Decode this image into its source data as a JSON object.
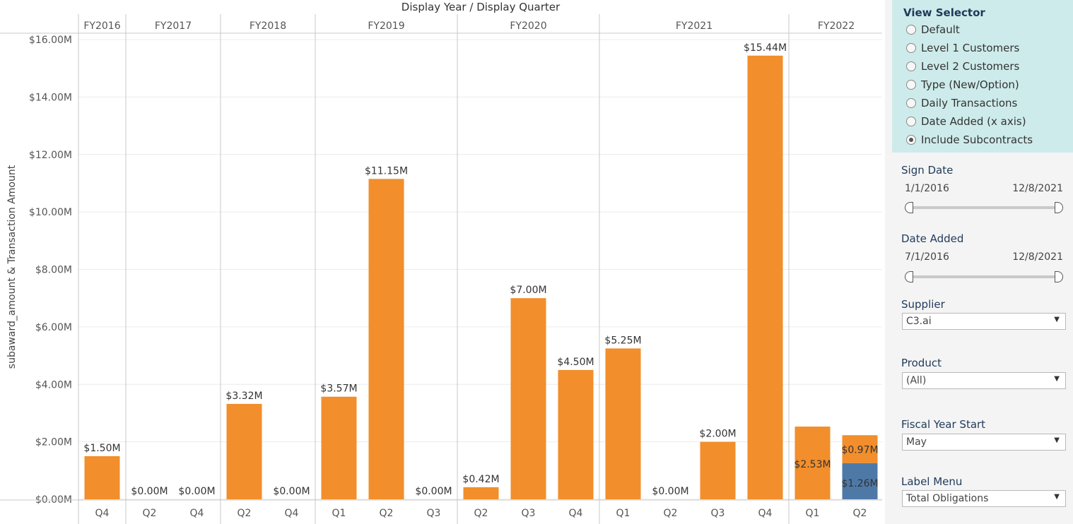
{
  "chart_data": {
    "type": "bar",
    "title": "Display Year / Display Quarter",
    "ylabel": "subaward_amount & Transaction Amount",
    "ylim": [
      0,
      16
    ],
    "y_ticks": [
      "$0.00M",
      "$2.00M",
      "$4.00M",
      "$6.00M",
      "$8.00M",
      "$10.00M",
      "$12.00M",
      "$14.00M",
      "$16.00M"
    ],
    "fiscal_years": [
      {
        "label": "FY2016",
        "quarters": [
          "Q4"
        ]
      },
      {
        "label": "FY2017",
        "quarters": [
          "Q2",
          "Q4"
        ]
      },
      {
        "label": "FY2018",
        "quarters": [
          "Q2",
          "Q4"
        ]
      },
      {
        "label": "FY2019",
        "quarters": [
          "Q1",
          "Q2",
          "Q3"
        ]
      },
      {
        "label": "FY2020",
        "quarters": [
          "Q2",
          "Q3",
          "Q4"
        ]
      },
      {
        "label": "FY2021",
        "quarters": [
          "Q1",
          "Q2",
          "Q3",
          "Q4"
        ]
      },
      {
        "label": "FY2022",
        "quarters": [
          "Q1",
          "Q2"
        ]
      }
    ],
    "bars": [
      {
        "year": "FY2016",
        "quarter": "Q4",
        "orange": 1.5,
        "blue": 0,
        "label": "$1.50M"
      },
      {
        "year": "FY2017",
        "quarter": "Q2",
        "orange": 0,
        "blue": 0,
        "label": "$0.00M"
      },
      {
        "year": "FY2017",
        "quarter": "Q4",
        "orange": 0,
        "blue": 0,
        "label": "$0.00M"
      },
      {
        "year": "FY2018",
        "quarter": "Q2",
        "orange": 3.32,
        "blue": 0,
        "label": "$3.32M"
      },
      {
        "year": "FY2018",
        "quarter": "Q4",
        "orange": 0,
        "blue": 0,
        "label": "$0.00M"
      },
      {
        "year": "FY2019",
        "quarter": "Q1",
        "orange": 3.57,
        "blue": 0,
        "label": "$3.57M"
      },
      {
        "year": "FY2019",
        "quarter": "Q2",
        "orange": 11.15,
        "blue": 0,
        "label": "$11.15M"
      },
      {
        "year": "FY2019",
        "quarter": "Q3",
        "orange": 0,
        "blue": 0,
        "label": "$0.00M"
      },
      {
        "year": "FY2020",
        "quarter": "Q2",
        "orange": 0.42,
        "blue": 0,
        "label": "$0.42M"
      },
      {
        "year": "FY2020",
        "quarter": "Q3",
        "orange": 7.0,
        "blue": 0,
        "label": "$7.00M"
      },
      {
        "year": "FY2020",
        "quarter": "Q4",
        "orange": 4.5,
        "blue": 0,
        "label": "$4.50M"
      },
      {
        "year": "FY2021",
        "quarter": "Q1",
        "orange": 5.25,
        "blue": 0,
        "label": "$5.25M"
      },
      {
        "year": "FY2021",
        "quarter": "Q2",
        "orange": 0,
        "blue": 0,
        "label": "$0.00M"
      },
      {
        "year": "FY2021",
        "quarter": "Q3",
        "orange": 2.0,
        "blue": 0,
        "label": "$2.00M"
      },
      {
        "year": "FY2021",
        "quarter": "Q4",
        "orange": 15.44,
        "blue": 0,
        "label": "$15.44M"
      },
      {
        "year": "FY2022",
        "quarter": "Q1",
        "orange": 2.53,
        "blue": 0,
        "label": "$2.53M",
        "label_inside": true
      },
      {
        "year": "FY2022",
        "quarter": "Q2",
        "orange": 0.97,
        "blue": 1.26,
        "label": "$0.97M",
        "blue_label": "$1.26M",
        "label_inside": true
      }
    ],
    "colors": {
      "orange": "#f28e2b",
      "blue": "#4e79a7"
    },
    "grid": true
  },
  "panel": {
    "view_selector": {
      "title": "View Selector",
      "options": [
        "Default",
        "Level 1 Customers",
        "Level 2 Customers",
        "Type (New/Option)",
        "Daily Transactions",
        "Date Added (x axis)",
        "Include Subcontracts"
      ],
      "selected": "Include Subcontracts"
    },
    "sign_date": {
      "title": "Sign Date",
      "start": "1/1/2016",
      "end": "12/8/2021"
    },
    "date_added": {
      "title": "Date Added",
      "start": "7/1/2016",
      "end": "12/8/2021"
    },
    "supplier": {
      "title": "Supplier",
      "value": "C3.ai"
    },
    "product": {
      "title": "Product",
      "value": "(All)"
    },
    "fiscal_year_start": {
      "title": "Fiscal Year Start",
      "value": "May"
    },
    "label_menu": {
      "title": "Label Menu",
      "value": "Total Obligations"
    }
  }
}
